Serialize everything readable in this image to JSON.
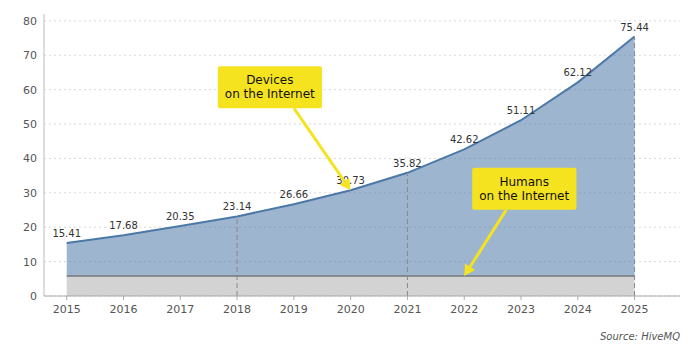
{
  "chart_data": {
    "type": "area",
    "x": [
      2015,
      2016,
      2017,
      2018,
      2019,
      2020,
      2021,
      2022,
      2023,
      2024,
      2025
    ],
    "series": [
      {
        "values": [
          15.41,
          17.68,
          20.35,
          23.14,
          26.66,
          30.73,
          35.82,
          42.62,
          51.11,
          62.12,
          75.44
        ],
        "color": "#4c78a8",
        "data_labels": true
      },
      {
        "values": [
          5.8,
          5.8,
          5.8,
          5.8,
          5.8,
          5.8,
          5.8,
          5.8,
          5.8,
          5.8,
          5.8
        ],
        "color": "#9e9e9e"
      }
    ],
    "xlim": [
      2014.6,
      2025.8
    ],
    "xticks": [
      2015,
      2016,
      2017,
      2018,
      2019,
      2020,
      2021,
      2022,
      2023,
      2024,
      2025
    ],
    "ylim": [
      0,
      82
    ],
    "yticks": [
      0,
      10,
      20,
      30,
      40,
      50,
      60,
      70,
      80
    ],
    "grid": true,
    "dashed_x": [
      2018,
      2021,
      2025
    ],
    "annotations": [
      "Devices\non the Internet",
      "Humans\non the Internet"
    ],
    "source": "Source: HiveMQ"
  }
}
